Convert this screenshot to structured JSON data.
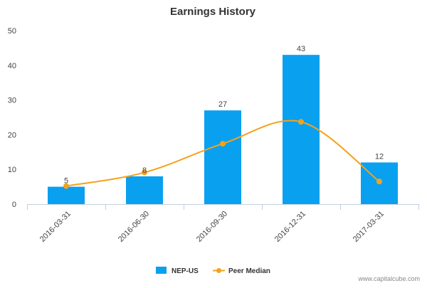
{
  "chart_data": {
    "type": "bar",
    "title": "Earnings History",
    "categories": [
      "2016-03-31",
      "2016-06-30",
      "2016-09-30",
      "2016-12-31",
      "2017-03-31"
    ],
    "series": [
      {
        "name": "NEP-US",
        "kind": "bar",
        "values": [
          5,
          8,
          27,
          43,
          12
        ],
        "color": "#0aa0f0",
        "data_labels": [
          "5",
          "8",
          "27",
          "43",
          "12"
        ]
      },
      {
        "name": "Peer Median",
        "kind": "line",
        "smooth": true,
        "values": [
          5.2,
          9.1,
          17.4,
          23.7,
          6.5
        ],
        "color": "#f5a21b"
      }
    ],
    "ylim": [
      0,
      50
    ],
    "yticks": [
      0,
      10,
      20,
      30,
      40,
      50
    ],
    "xlabel": "",
    "ylabel": "",
    "grid": false,
    "legend_position": "bottom-center"
  },
  "credit": "www.capitalcube.com"
}
